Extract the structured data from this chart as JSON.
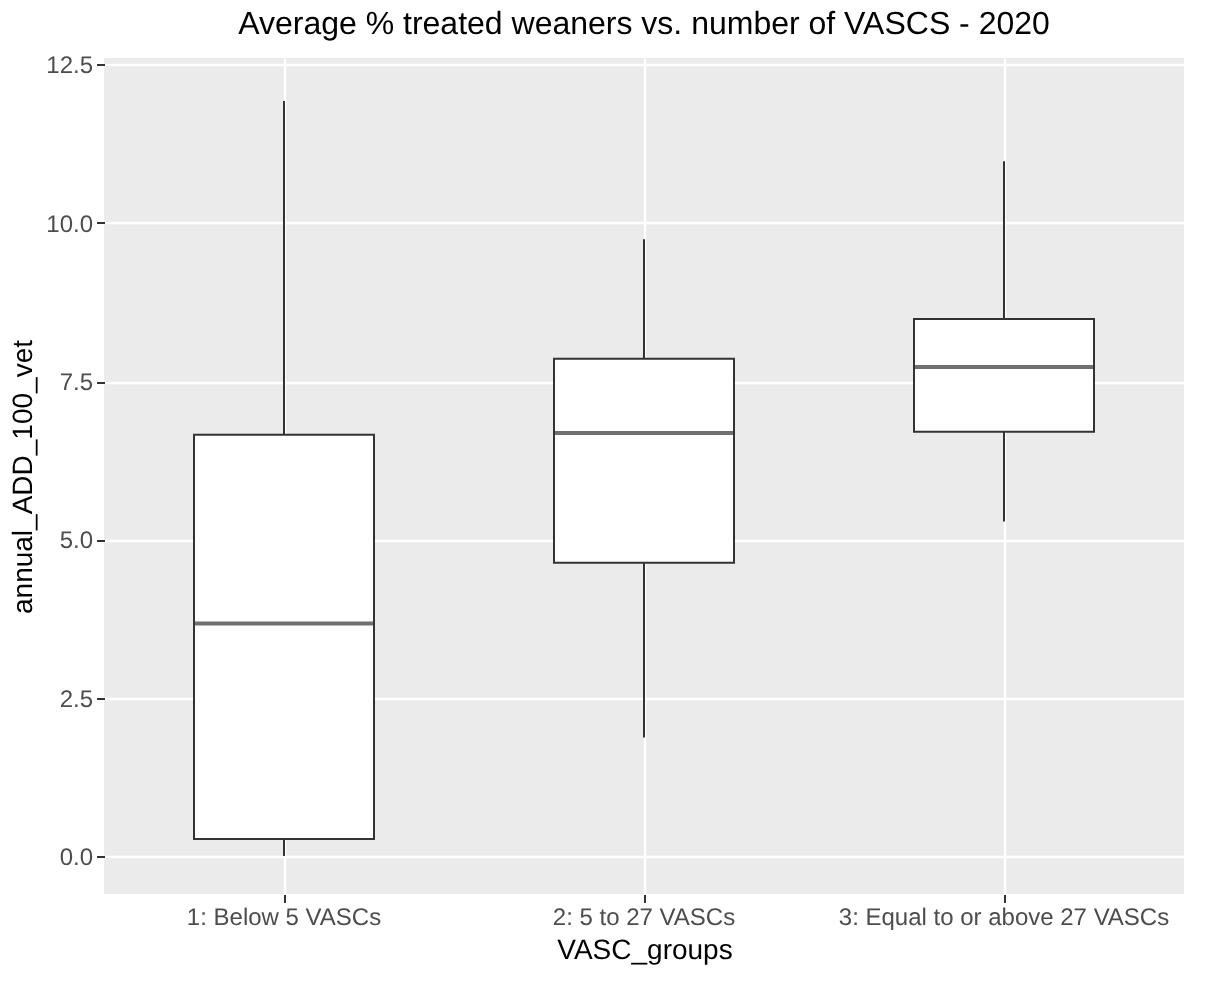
{
  "chart_data": {
    "type": "box",
    "title": "Average % treated weaners vs. number of VASCS - 2020",
    "xlabel": "VASC_groups",
    "ylabel": "annual_ADD_100_vet",
    "categories": [
      "1: Below  5  VASCs",
      "2: 5  to  27  VASCs",
      "3: Equal to or above  27  VASCs"
    ],
    "boxes": [
      {
        "low": 0,
        "q1": 0.27,
        "median": 3.67,
        "q3": 6.65,
        "high": 11.92
      },
      {
        "low": 1.87,
        "q1": 4.63,
        "median": 6.68,
        "q3": 7.85,
        "high": 9.74
      },
      {
        "low": 5.28,
        "q1": 6.7,
        "median": 7.72,
        "q3": 8.48,
        "high": 10.97
      }
    ],
    "ylim": [
      -0.6,
      12.6
    ],
    "yticks": [
      {
        "value": 0,
        "label": "0.0"
      },
      {
        "value": 2.5,
        "label": "2.5"
      },
      {
        "value": 5,
        "label": "5.0"
      },
      {
        "value": 7.5,
        "label": "7.5"
      },
      {
        "value": 10,
        "label": "10.0"
      },
      {
        "value": 12.5,
        "label": "12.5"
      }
    ],
    "grid": true
  }
}
